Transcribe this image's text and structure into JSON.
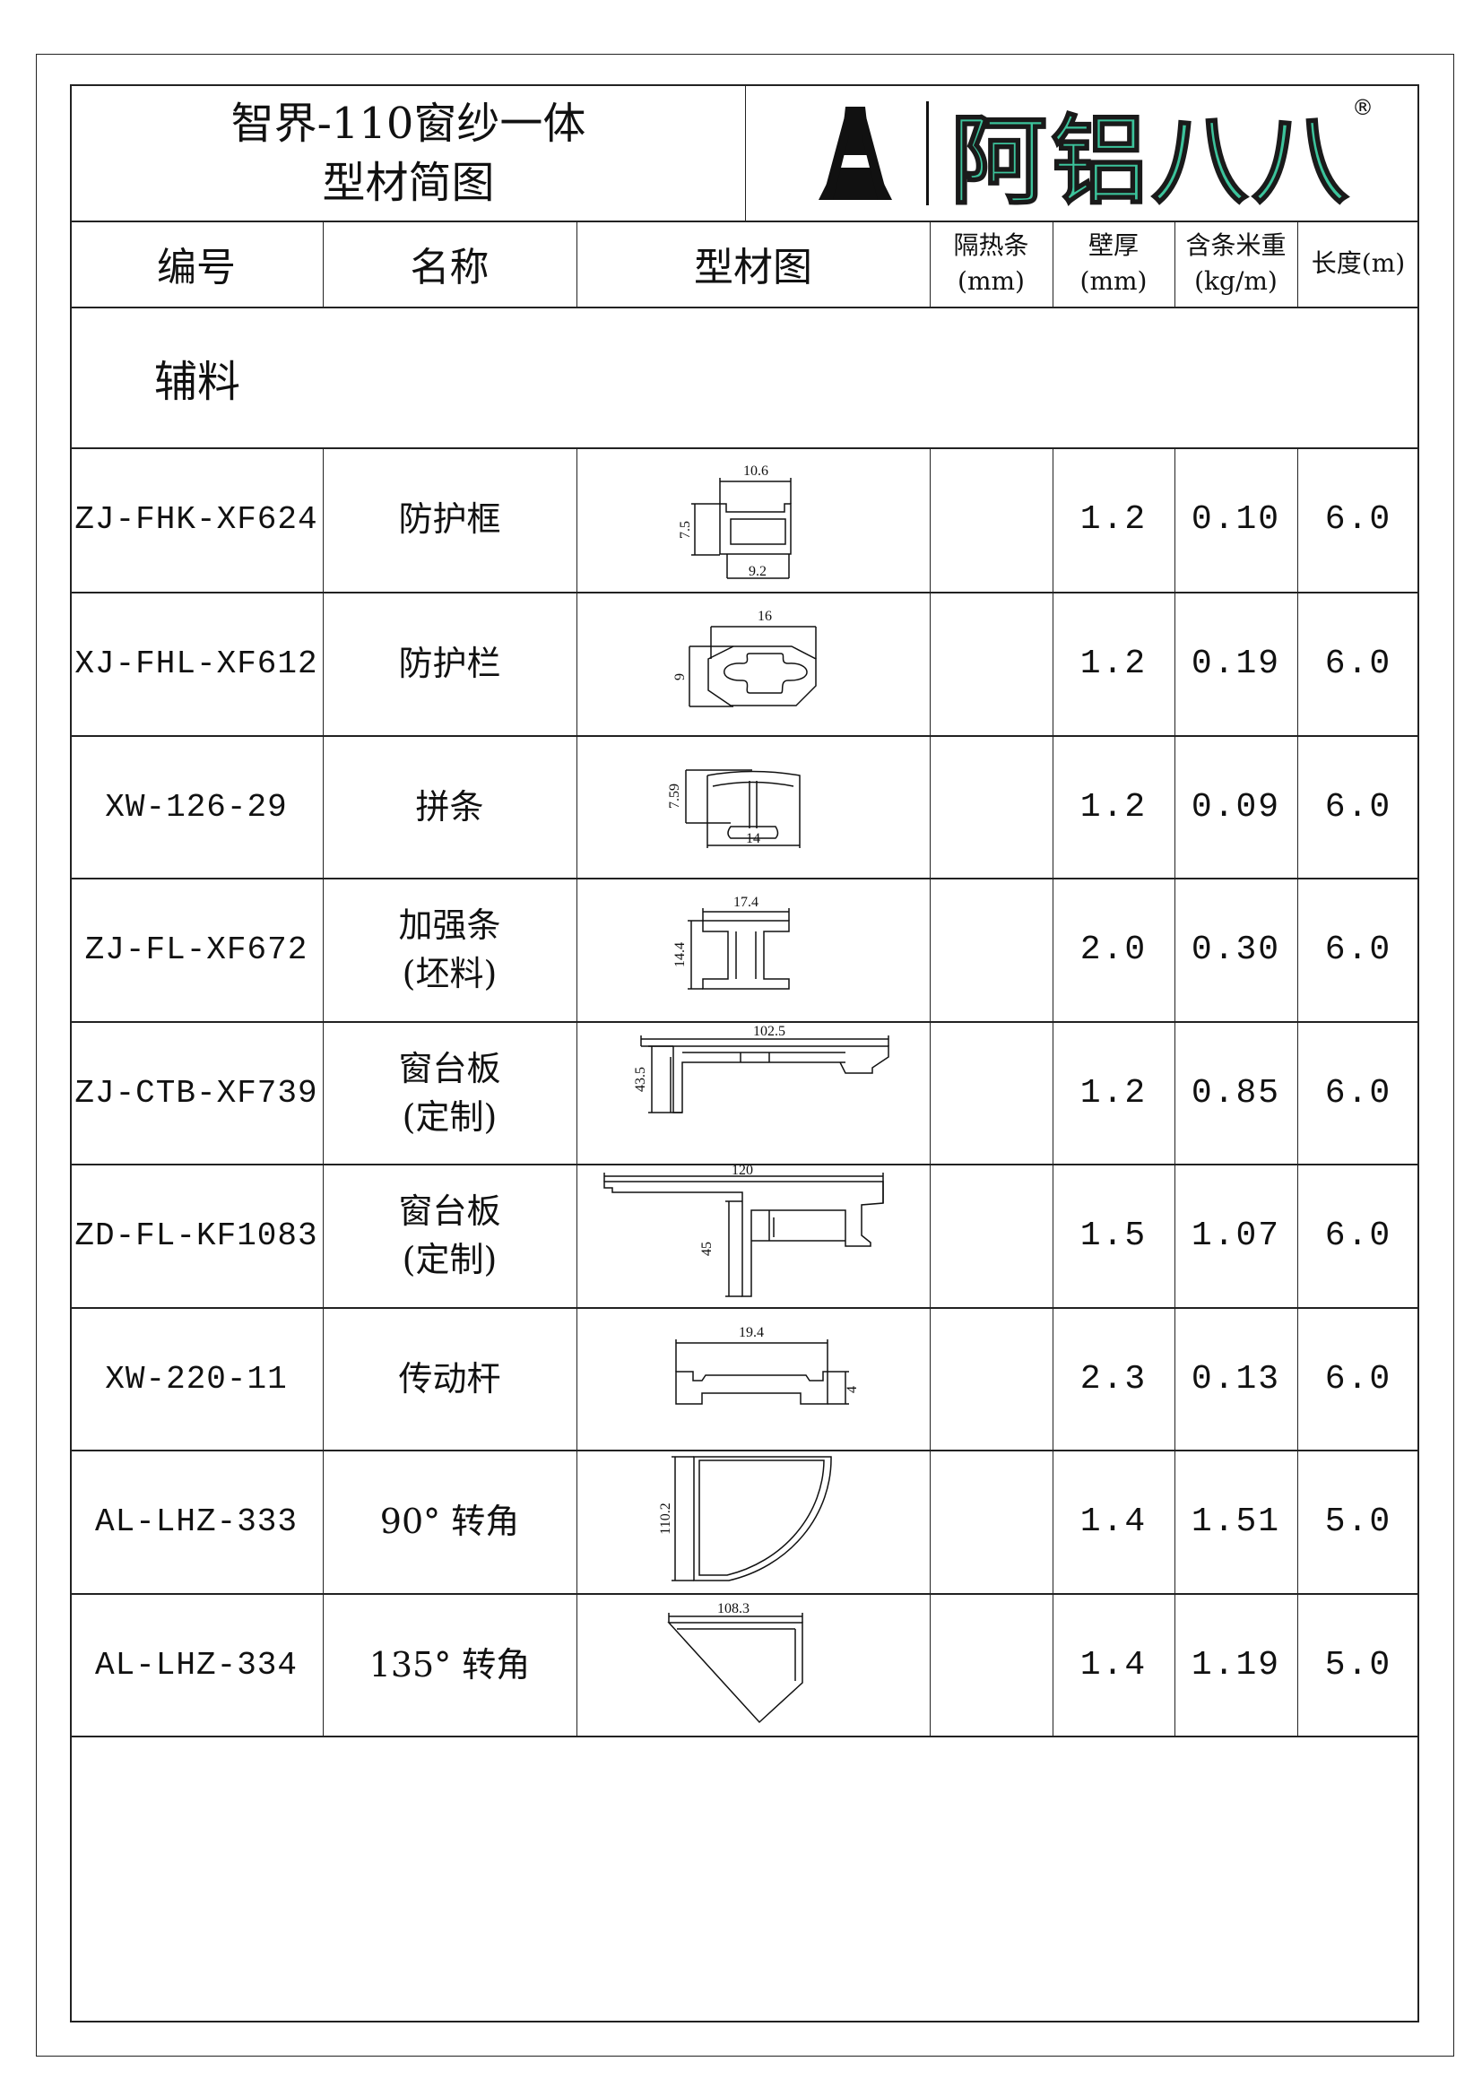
{
  "title": {
    "line1": "智界-110窗纱一体",
    "line2": "型材简图"
  },
  "logo": {
    "brand_text": "阿铝八八",
    "registered": "®",
    "brand_color": "#3cc39b"
  },
  "headers": {
    "code": "编号",
    "name": "名称",
    "drawing": "型材图",
    "strip": "隔热条",
    "strip_unit": "(mm)",
    "wall": "壁厚",
    "wall_unit": "(mm)",
    "weight": "含条米重",
    "weight_unit": "(kg/m)",
    "length": "长度(m)"
  },
  "section_label": "辅料",
  "rows": [
    {
      "code": "ZJ-FHK-XF624",
      "name": "防护框",
      "name2": "",
      "strip": "",
      "wall": "1.2",
      "weight": "0.10",
      "length": "6.0",
      "dims": [
        "10.6",
        "7.5",
        "9.2"
      ]
    },
    {
      "code": "XJ-FHL-XF612",
      "name": "防护栏",
      "name2": "",
      "strip": "",
      "wall": "1.2",
      "weight": "0.19",
      "length": "6.0",
      "dims": [
        "16",
        "9"
      ]
    },
    {
      "code": "XW-126-29",
      "name": "拼条",
      "name2": "",
      "strip": "",
      "wall": "1.2",
      "weight": "0.09",
      "length": "6.0",
      "dims": [
        "7.59",
        "14"
      ]
    },
    {
      "code": "ZJ-FL-XF672",
      "name": "加强条",
      "name2": "(坯料)",
      "strip": "",
      "wall": "2.0",
      "weight": "0.30",
      "length": "6.0",
      "dims": [
        "17.4",
        "14.4"
      ]
    },
    {
      "code": "ZJ-CTB-XF739",
      "name": "窗台板",
      "name2": "(定制)",
      "strip": "",
      "wall": "1.2",
      "weight": "0.85",
      "length": "6.0",
      "dims": [
        "102.5",
        "43.5"
      ]
    },
    {
      "code": "ZD-FL-KF1083",
      "name": "窗台板",
      "name2": "(定制)",
      "strip": "",
      "wall": "1.5",
      "weight": "1.07",
      "length": "6.0",
      "dims": [
        "120",
        "45"
      ]
    },
    {
      "code": "XW-220-11",
      "name": "传动杆",
      "name2": "",
      "strip": "",
      "wall": "2.3",
      "weight": "0.13",
      "length": "6.0",
      "dims": [
        "19.4",
        "4"
      ]
    },
    {
      "code": "AL-LHZ-333",
      "name": "90° 转角",
      "name2": "",
      "strip": "",
      "wall": "1.4",
      "weight": "1.51",
      "length": "5.0",
      "dims": [
        "110.2"
      ]
    },
    {
      "code": "AL-LHZ-334",
      "name": "135° 转角",
      "name2": "",
      "strip": "",
      "wall": "1.4",
      "weight": "1.19",
      "length": "5.0",
      "dims": [
        "108.3"
      ]
    }
  ]
}
